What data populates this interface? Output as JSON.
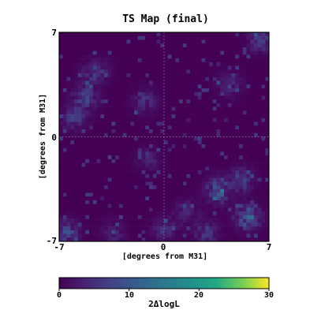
{
  "chart_data": {
    "type": "heatmap",
    "title": "TS Map (final)",
    "xlabel": "[degrees from M31]",
    "ylabel": "[degrees from M31]",
    "xlim": [
      -7,
      7
    ],
    "ylim": [
      -7,
      7
    ],
    "x_ticks": [
      "-7",
      "0",
      "7"
    ],
    "y_ticks": [
      "7",
      "0",
      "-7"
    ],
    "grid": "dotted lines at 0",
    "colormap": "viridis",
    "colorbar": {
      "label": "2ΔlogL",
      "range": [
        0,
        30
      ],
      "ticks": [
        "0",
        "10",
        "20",
        "30"
      ]
    },
    "hotspots": [
      {
        "x": -5.3,
        "y": 2.6,
        "ts": 9
      },
      {
        "x": -6.0,
        "y": 1.2,
        "ts": 7
      },
      {
        "x": -1.3,
        "y": 2.4,
        "ts": 6
      },
      {
        "x": -4.6,
        "y": 4.3,
        "ts": 8
      },
      {
        "x": 3.6,
        "y": -3.6,
        "ts": 12
      },
      {
        "x": 5.6,
        "y": -5.4,
        "ts": 14
      },
      {
        "x": 5.1,
        "y": -2.9,
        "ts": 8
      },
      {
        "x": 4.4,
        "y": 3.5,
        "ts": 5
      },
      {
        "x": 2.8,
        "y": -6.4,
        "ts": 7
      },
      {
        "x": -6.5,
        "y": -6.4,
        "ts": 9
      },
      {
        "x": 6.5,
        "y": 6.5,
        "ts": 9
      },
      {
        "x": 0.0,
        "y": -6.2,
        "ts": 6
      },
      {
        "x": 1.5,
        "y": -5.0,
        "ts": 5
      },
      {
        "x": -3.4,
        "y": -6.5,
        "ts": 5
      },
      {
        "x": -1.0,
        "y": -1.5,
        "ts": 4
      }
    ]
  }
}
